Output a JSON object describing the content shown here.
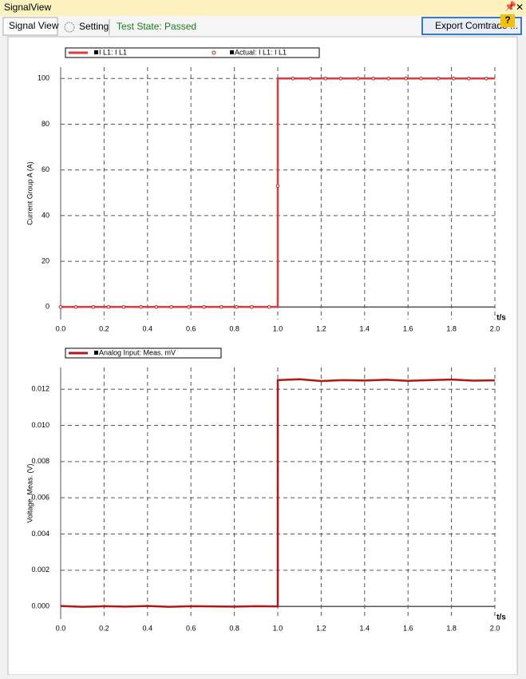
{
  "header": {
    "title": "SignalView",
    "help": "?"
  },
  "tabs": [
    "Signal View",
    "Setting"
  ],
  "status": "Test State: Passed",
  "button": "Export Comtrade ...",
  "chart_data": [
    {
      "type": "line",
      "ylabel": "Current Group A (A)",
      "xlabel": "t/s",
      "xlim": [
        0,
        2
      ],
      "xticks": [
        {
          "value": 0,
          "label": "0.0"
        },
        0.2,
        0.4,
        0.6,
        0.8,
        {
          "value": 1,
          "label": "1.0"
        },
        1.2,
        1.4,
        1.6,
        1.8,
        {
          "value": 2,
          "label": "2.0"
        }
      ],
      "ylim": [
        -5.5,
        105
      ],
      "yticks": [
        0,
        20,
        40,
        60,
        80,
        100
      ],
      "grid": true,
      "series": [
        {
          "name": "I L1: I L1",
          "color": "#e03a3a",
          "mode": "lines",
          "x": [
            0,
            1,
            1,
            2
          ],
          "values": [
            0,
            0,
            100,
            100
          ]
        },
        {
          "name": "Actual: I L1: I L1",
          "color": "#c02020",
          "mode": "markers",
          "x": [
            0,
            0.07,
            0.15,
            0.22,
            0.29,
            0.37,
            0.44,
            0.51,
            0.59,
            0.66,
            0.74,
            0.81,
            0.88,
            0.96,
            1.0,
            1.07,
            1.15,
            1.22,
            1.29,
            1.37,
            1.44,
            1.51,
            1.59,
            1.66,
            1.74,
            1.81,
            1.88,
            1.96
          ],
          "values": [
            0,
            0,
            0,
            0,
            0,
            0,
            0,
            0,
            0,
            0,
            0,
            0,
            0,
            0,
            53,
            100,
            100,
            100,
            100,
            100,
            100,
            100,
            100,
            100,
            100,
            100,
            100,
            100
          ]
        }
      ]
    },
    {
      "type": "line",
      "ylabel": "Voltage. Meas. (V)",
      "xlabel": "t/s",
      "xlim": [
        0,
        2
      ],
      "xticks": [
        {
          "value": 0,
          "label": "0.0"
        },
        0.2,
        0.4,
        0.6,
        0.8,
        {
          "value": 1,
          "label": "1.0"
        },
        1.2,
        1.4,
        1.6,
        1.8,
        {
          "value": 2,
          "label": "2.0"
        }
      ],
      "ylim": [
        -0.0007,
        0.0132
      ],
      "yticks": [
        {
          "value": 0,
          "label": "0.000"
        },
        {
          "value": 0.002,
          "label": "0.002"
        },
        {
          "value": 0.004,
          "label": "0.004"
        },
        {
          "value": 0.006,
          "label": "0.006"
        },
        {
          "value": 0.008,
          "label": "0.008"
        },
        {
          "value": 0.01,
          "label": "0.010"
        },
        {
          "value": 0.012,
          "label": "0.012"
        }
      ],
      "grid": true,
      "series": [
        {
          "name": "Analog Input: Meas. mV",
          "color": "#b01818",
          "mode": "lines",
          "x": [
            0,
            0.1,
            0.2,
            0.3,
            0.4,
            0.5,
            0.6,
            0.7,
            0.8,
            0.9,
            1.0,
            1.0,
            1.1,
            1.2,
            1.3,
            1.4,
            1.5,
            1.6,
            1.7,
            1.8,
            1.9,
            2.0
          ],
          "values": [
            2e-05,
            -2e-05,
            1e-05,
            -1e-05,
            2e-05,
            -2e-05,
            1e-05,
            0,
            -1e-05,
            1e-05,
            0,
            0.0125,
            0.01255,
            0.01245,
            0.0125,
            0.01248,
            0.01252,
            0.01246,
            0.0125,
            0.01253,
            0.01247,
            0.01249
          ]
        }
      ]
    }
  ]
}
